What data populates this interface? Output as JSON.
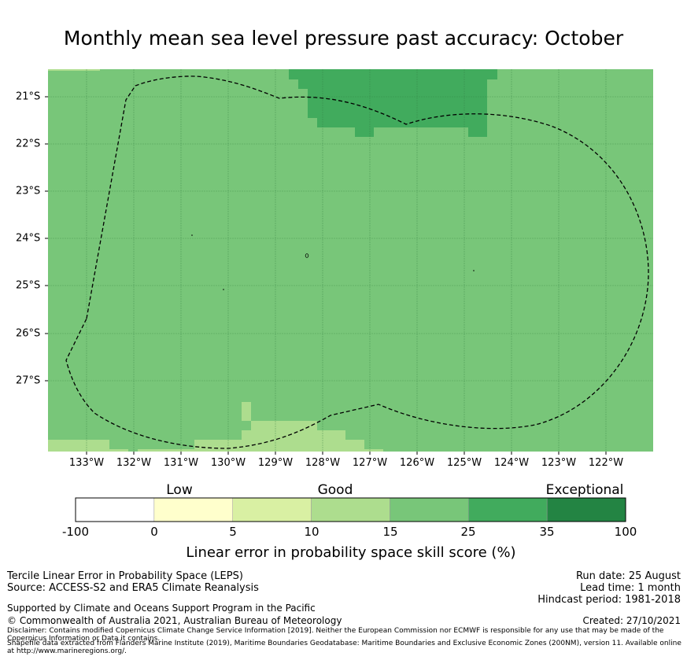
{
  "title": "Monthly mean sea level pressure past accuracy: October",
  "map": {
    "lon_labels": [
      "133°W",
      "132°W",
      "131°W",
      "130°W",
      "129°W",
      "128°W",
      "127°W",
      "126°W",
      "125°W",
      "124°W",
      "123°W",
      "122°W"
    ],
    "lat_labels": [
      "21°S",
      "22°S",
      "23°S",
      "24°S",
      "25°S",
      "26°S",
      "27°S"
    ],
    "lon_range": [
      -133.8,
      -121.0
    ],
    "lat_range": [
      -28.5,
      -20.45
    ],
    "background_category": "15-25",
    "grid": true,
    "boundary_style": "dashed"
  },
  "colorbar": {
    "category_labels": [
      "Low",
      "Good",
      "Exceptional"
    ],
    "ticks": [
      "-100",
      "0",
      "5",
      "10",
      "15",
      "25",
      "35",
      "100"
    ],
    "colors": [
      "#ffffff",
      "#ffffcc",
      "#d9f0a3",
      "#addd8e",
      "#78c679",
      "#41ab5d",
      "#238443"
    ],
    "title": "Linear error in probability space skill score (%)"
  },
  "footer": {
    "line1": "Tercile Linear Error in Probability Space (LEPS)",
    "line2": "Source: ACCESS-S2 and ERA5 Climate Reanalysis",
    "line3": "Supported by Climate and Oceans Support Program in the Pacific",
    "line4": "© Commonwealth of Australia 2021, Australian Bureau of Meteorology",
    "disclaimer1": "Disclaimer: Contains modified Copernicus Climate Change Service Information [2019]. Neither the European Commission nor ECMWF is responsible for any use that may be made of the Copernicus Information or Data it contains.",
    "disclaimer2": "Shapefile data extracted from Flanders Marine Institute (2019), Maritime Boundaries Geodatabase: Maritime Boundaries and Exclusive Economic Zones (200NM), version 11. Available online at http://www.marineregions.org/.",
    "run_date": "Run date: 25 August",
    "lead_time": "Lead time: 1 month",
    "hindcast": "Hindcast period: 1981-2018",
    "created": "Created: 27/10/2021"
  }
}
